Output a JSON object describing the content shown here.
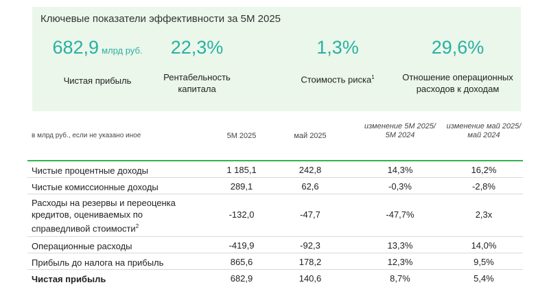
{
  "panel": {
    "title": "Ключевые показатели эффективности за 5М 2025",
    "kpis": [
      {
        "value": "682,9",
        "unit": "млрд руб.",
        "label": "Чистая прибыль",
        "sup": ""
      },
      {
        "value": "22,3%",
        "unit": "",
        "label": "Рентабельность капитала",
        "sup": ""
      },
      {
        "value": "1,3%",
        "unit": "",
        "label": "Стоимость риска",
        "sup": "1"
      },
      {
        "value": "29,6%",
        "unit": "",
        "label": "Отношение операционных расходов к доходам",
        "sup": ""
      }
    ]
  },
  "table": {
    "note": "в млрд руб., если не указано иное",
    "columns": [
      "5M 2025",
      "май 2025",
      "изменение 5M 2025/ 5M 2024",
      "изменение май 2025/ май 2024"
    ],
    "rows": [
      {
        "label": "Чистые процентные доходы",
        "sup": "",
        "values": [
          "1 185,1",
          "242,8",
          "14,3%",
          "16,2%"
        ]
      },
      {
        "label": "Чистые комиссионные доходы",
        "sup": "",
        "values": [
          "289,1",
          "62,6",
          "-0,3%",
          "-2,8%"
        ]
      },
      {
        "label": "Расходы на резервы и переоценка кредитов, оцениваемых по справедливой стоимости",
        "sup": "2",
        "values": [
          "-132,0",
          "-47,7",
          "-47,7%",
          "2,3x"
        ]
      },
      {
        "label": "Операционные расходы",
        "sup": "",
        "values": [
          "-419,9",
          "-92,3",
          "13,3%",
          "14,0%"
        ]
      },
      {
        "label": "Прибыль до налога на прибыль",
        "sup": "",
        "values": [
          "865,6",
          "178,2",
          "12,3%",
          "9,5%"
        ]
      },
      {
        "label": "Чистая прибыль",
        "sup": "",
        "values": [
          "682,9",
          "140,6",
          "8,7%",
          "5,4%"
        ]
      }
    ]
  }
}
